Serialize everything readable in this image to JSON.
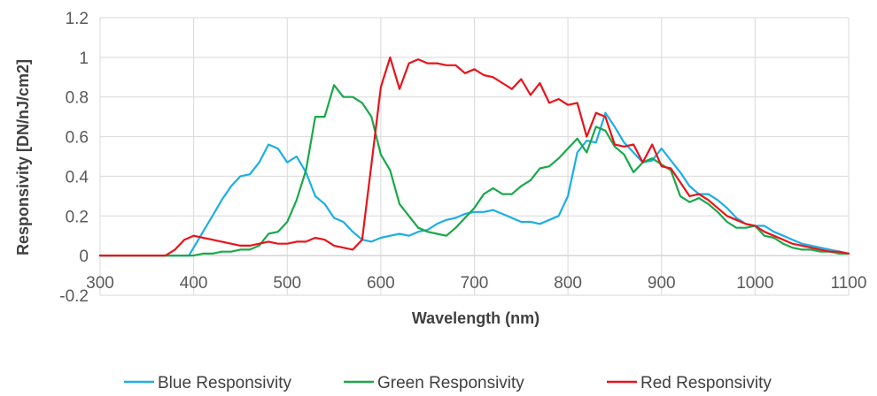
{
  "chart_data": {
    "type": "line",
    "xlabel": "Wavelength (nm)",
    "ylabel": "Responsivity [DN/nJ/cm2]",
    "xlim": [
      300,
      1100
    ],
    "ylim": [
      -0.2,
      1.2
    ],
    "x_ticks": [
      300,
      400,
      500,
      600,
      700,
      800,
      900,
      1000,
      1100
    ],
    "y_ticks": [
      -0.2,
      0,
      0.2,
      0.4,
      0.6,
      0.8,
      1,
      1.2
    ],
    "x_tick_labels": [
      "300",
      "400",
      "500",
      "600",
      "700",
      "800",
      "900",
      "1000",
      "1100"
    ],
    "y_tick_labels": [
      "-0.2",
      "0",
      "0.2",
      "0.4",
      "0.6",
      "0.8",
      "1",
      "1.2"
    ],
    "grid": true,
    "legend_position": "bottom",
    "series": [
      {
        "name": "Blue Responsivity",
        "color": "#1CAEE6",
        "x": [
          300,
          390,
          395,
          410,
          420,
          430,
          440,
          450,
          460,
          470,
          480,
          490,
          500,
          510,
          520,
          530,
          540,
          550,
          560,
          570,
          580,
          590,
          600,
          610,
          620,
          630,
          640,
          650,
          660,
          670,
          680,
          690,
          700,
          710,
          720,
          730,
          740,
          750,
          760,
          770,
          780,
          790,
          800,
          810,
          820,
          830,
          840,
          850,
          860,
          870,
          880,
          890,
          900,
          910,
          920,
          930,
          940,
          950,
          960,
          970,
          980,
          990,
          1000,
          1010,
          1020,
          1030,
          1040,
          1050,
          1060,
          1070,
          1080,
          1090,
          1100
        ],
        "y": [
          0,
          0,
          0,
          0.12,
          0.2,
          0.28,
          0.35,
          0.4,
          0.41,
          0.47,
          0.56,
          0.54,
          0.47,
          0.5,
          0.42,
          0.3,
          0.26,
          0.19,
          0.17,
          0.12,
          0.08,
          0.07,
          0.09,
          0.1,
          0.11,
          0.1,
          0.12,
          0.13,
          0.16,
          0.18,
          0.19,
          0.21,
          0.22,
          0.22,
          0.23,
          0.21,
          0.19,
          0.17,
          0.17,
          0.16,
          0.18,
          0.2,
          0.3,
          0.52,
          0.58,
          0.57,
          0.72,
          0.65,
          0.57,
          0.52,
          0.47,
          0.48,
          0.54,
          0.48,
          0.42,
          0.35,
          0.31,
          0.31,
          0.28,
          0.24,
          0.19,
          0.16,
          0.15,
          0.15,
          0.12,
          0.1,
          0.08,
          0.06,
          0.05,
          0.04,
          0.03,
          0.02,
          0.01
        ]
      },
      {
        "name": "Green Responsivity",
        "color": "#1AA84A",
        "x": [
          300,
          400,
          410,
          420,
          430,
          440,
          450,
          460,
          470,
          480,
          490,
          500,
          510,
          520,
          530,
          540,
          550,
          560,
          570,
          580,
          590,
          600,
          610,
          620,
          630,
          640,
          650,
          660,
          670,
          680,
          690,
          700,
          710,
          720,
          730,
          740,
          750,
          760,
          770,
          780,
          790,
          800,
          810,
          820,
          830,
          840,
          850,
          860,
          870,
          880,
          890,
          900,
          910,
          920,
          930,
          940,
          950,
          960,
          970,
          980,
          990,
          1000,
          1010,
          1020,
          1030,
          1040,
          1050,
          1060,
          1070,
          1080,
          1090,
          1100
        ],
        "y": [
          0,
          0,
          0.01,
          0.01,
          0.02,
          0.02,
          0.03,
          0.03,
          0.05,
          0.11,
          0.12,
          0.17,
          0.28,
          0.43,
          0.7,
          0.7,
          0.86,
          0.8,
          0.8,
          0.77,
          0.7,
          0.51,
          0.43,
          0.26,
          0.2,
          0.14,
          0.12,
          0.11,
          0.1,
          0.14,
          0.19,
          0.24,
          0.31,
          0.34,
          0.31,
          0.31,
          0.35,
          0.38,
          0.44,
          0.45,
          0.49,
          0.54,
          0.59,
          0.52,
          0.65,
          0.63,
          0.55,
          0.51,
          0.42,
          0.47,
          0.49,
          0.46,
          0.43,
          0.3,
          0.27,
          0.29,
          0.26,
          0.22,
          0.17,
          0.14,
          0.14,
          0.15,
          0.1,
          0.09,
          0.06,
          0.04,
          0.03,
          0.03,
          0.02,
          0.02,
          0.01,
          0.01
        ]
      },
      {
        "name": "Red Responsivity",
        "color": "#E8141B",
        "x": [
          300,
          370,
          380,
          390,
          400,
          410,
          420,
          430,
          440,
          450,
          460,
          470,
          480,
          490,
          500,
          510,
          520,
          530,
          540,
          550,
          560,
          570,
          580,
          590,
          600,
          610,
          620,
          630,
          640,
          650,
          660,
          670,
          680,
          690,
          700,
          710,
          720,
          730,
          740,
          750,
          760,
          770,
          780,
          790,
          800,
          810,
          820,
          830,
          840,
          850,
          860,
          870,
          880,
          890,
          900,
          910,
          920,
          930,
          940,
          950,
          960,
          970,
          980,
          990,
          1000,
          1010,
          1020,
          1030,
          1040,
          1050,
          1060,
          1070,
          1080,
          1090,
          1100
        ],
        "y": [
          0,
          0,
          0.03,
          0.08,
          0.1,
          0.09,
          0.08,
          0.07,
          0.06,
          0.05,
          0.05,
          0.06,
          0.07,
          0.06,
          0.06,
          0.07,
          0.07,
          0.09,
          0.08,
          0.05,
          0.04,
          0.03,
          0.08,
          0.46,
          0.85,
          1.0,
          0.84,
          0.97,
          0.99,
          0.97,
          0.97,
          0.96,
          0.96,
          0.92,
          0.94,
          0.91,
          0.9,
          0.87,
          0.84,
          0.89,
          0.81,
          0.87,
          0.77,
          0.79,
          0.76,
          0.77,
          0.6,
          0.72,
          0.7,
          0.56,
          0.55,
          0.56,
          0.47,
          0.56,
          0.45,
          0.44,
          0.37,
          0.3,
          0.31,
          0.28,
          0.24,
          0.2,
          0.18,
          0.16,
          0.15,
          0.12,
          0.1,
          0.08,
          0.06,
          0.05,
          0.04,
          0.03,
          0.02,
          0.02,
          0.01
        ]
      }
    ]
  }
}
